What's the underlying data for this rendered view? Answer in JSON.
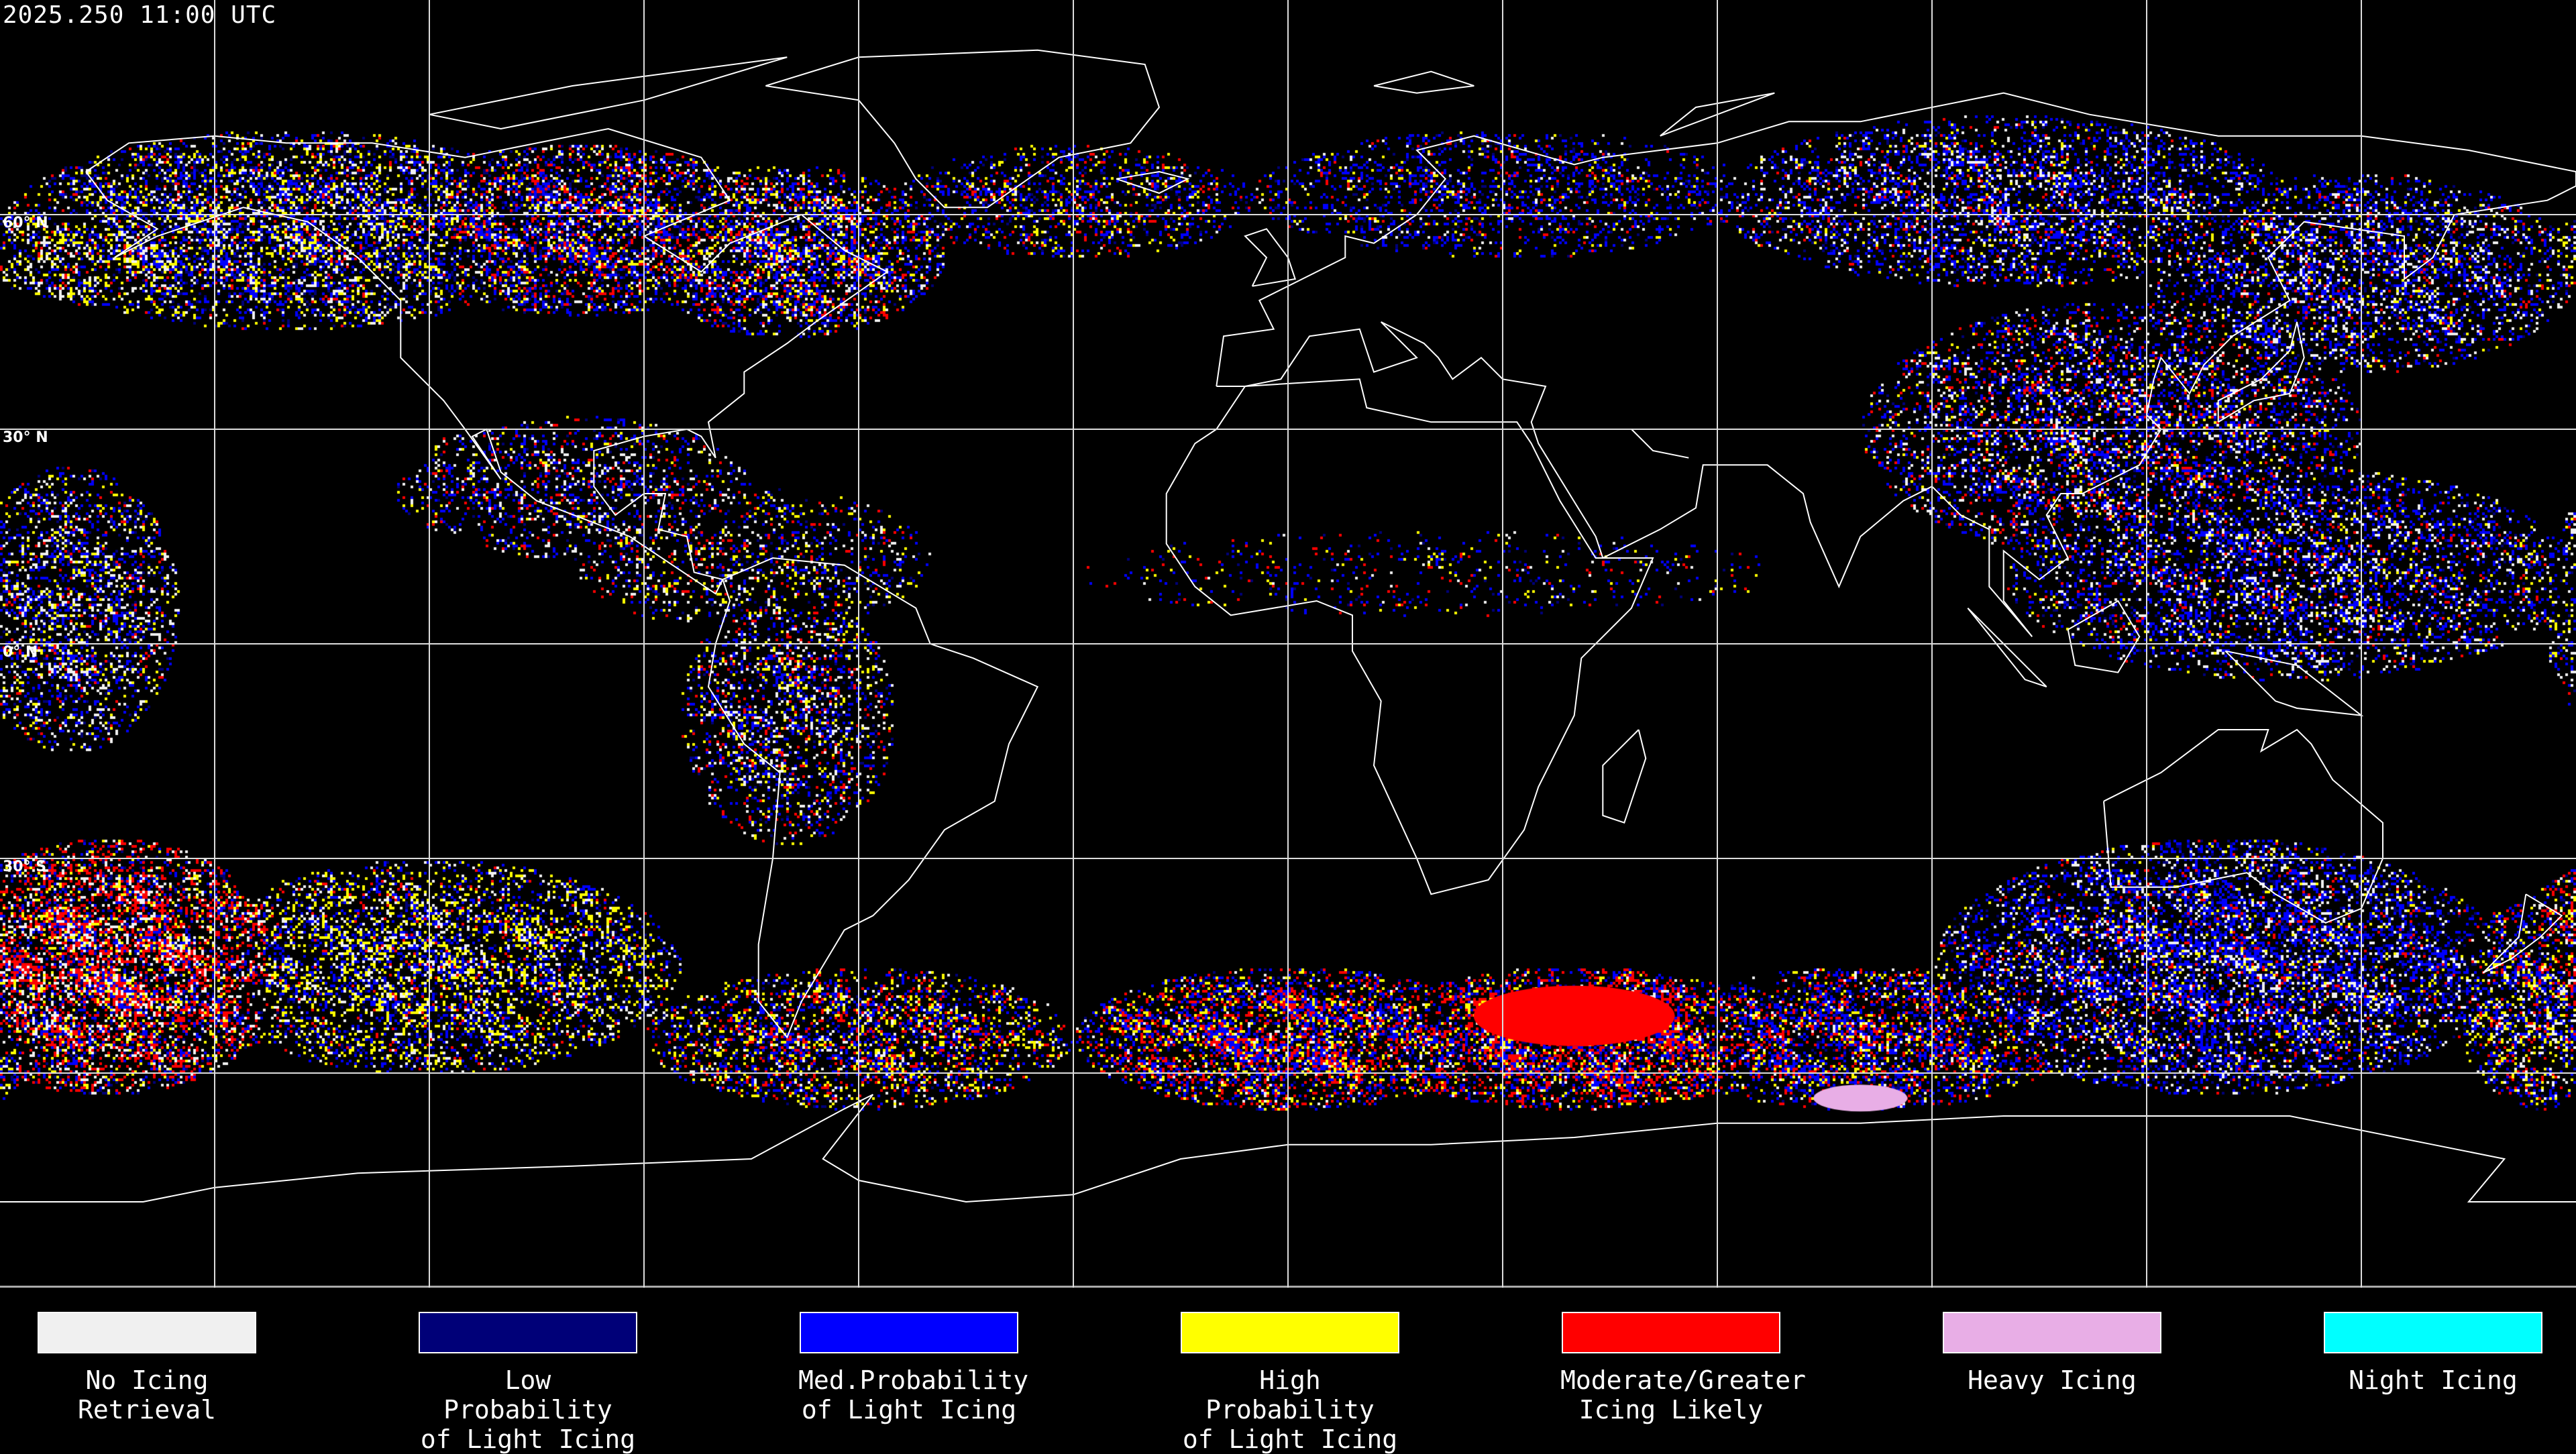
{
  "header": {
    "timestamp": "2025.250 11:00 UTC"
  },
  "map": {
    "projection": "equirectangular",
    "lat_labels": [
      "60° N",
      "30° N",
      "0° N",
      "30° S"
    ],
    "grid_spacing_deg": 30
  },
  "legend": [
    {
      "label": "No Icing\nRetrieval",
      "color": "#f0f0f0"
    },
    {
      "label": "Low Probability\nof Light Icing",
      "color": "#000078"
    },
    {
      "label": "Med.Probability\nof Light Icing",
      "color": "#0000ff"
    },
    {
      "label": "High Probability\nof Light Icing",
      "color": "#ffff00"
    },
    {
      "label": "Moderate/Greater\nIcing Likely",
      "color": "#ff0000"
    },
    {
      "label": "Heavy Icing",
      "color": "#e8aee6"
    },
    {
      "label": "Night Icing",
      "color": "#00ffff"
    }
  ]
}
